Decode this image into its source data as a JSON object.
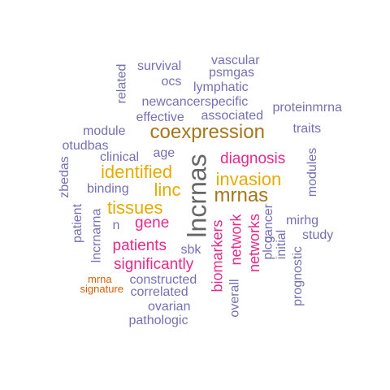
{
  "palette": {
    "slate": "#7570b3",
    "pink": "#e7298a",
    "gold": "#e6ab02",
    "brown": "#a6761d",
    "gray": "#666666",
    "orange": "#d95f02"
  },
  "words": [
    {
      "text": "lncrnas",
      "color": "#666666"
    },
    {
      "text": "coexpression",
      "color": "#a6761d"
    },
    {
      "text": "mrnas",
      "color": "#a6761d"
    },
    {
      "text": "identified",
      "color": "#e6ab02"
    },
    {
      "text": "invasion",
      "color": "#e6ab02"
    },
    {
      "text": "linc",
      "color": "#e6ab02"
    },
    {
      "text": "tissues",
      "color": "#e6ab02"
    },
    {
      "text": "diagnosis",
      "color": "#e7298a"
    },
    {
      "text": "gene",
      "color": "#e7298a"
    },
    {
      "text": "patients",
      "color": "#e7298a"
    },
    {
      "text": "significantly",
      "color": "#e7298a"
    },
    {
      "text": "biomarkers",
      "color": "#e7298a"
    },
    {
      "text": "network",
      "color": "#e7298a"
    },
    {
      "text": "networks",
      "color": "#e7298a"
    },
    {
      "text": "vascular",
      "color": "#7570b3"
    },
    {
      "text": "survival",
      "color": "#7570b3"
    },
    {
      "text": "psmgas",
      "color": "#7570b3"
    },
    {
      "text": "related",
      "color": "#7570b3"
    },
    {
      "text": "ocs",
      "color": "#7570b3"
    },
    {
      "text": "lymphatic",
      "color": "#7570b3"
    },
    {
      "text": "newcancerspecific",
      "color": "#7570b3"
    },
    {
      "text": "proteinmrna",
      "color": "#7570b3"
    },
    {
      "text": "effective",
      "color": "#7570b3"
    },
    {
      "text": "associated",
      "color": "#7570b3"
    },
    {
      "text": "module",
      "color": "#7570b3"
    },
    {
      "text": "traits",
      "color": "#7570b3"
    },
    {
      "text": "otudbas",
      "color": "#7570b3"
    },
    {
      "text": "clinical",
      "color": "#7570b3"
    },
    {
      "text": "age",
      "color": "#7570b3"
    },
    {
      "text": "modules",
      "color": "#7570b3"
    },
    {
      "text": "zbedas",
      "color": "#7570b3"
    },
    {
      "text": "binding",
      "color": "#7570b3"
    },
    {
      "text": "patient",
      "color": "#7570b3"
    },
    {
      "text": "n",
      "color": "#7570b3"
    },
    {
      "text": "lncrnarna",
      "color": "#7570b3"
    },
    {
      "text": "mirhg",
      "color": "#7570b3"
    },
    {
      "text": "study",
      "color": "#7570b3"
    },
    {
      "text": "sbk",
      "color": "#7570b3"
    },
    {
      "text": "constructed",
      "color": "#7570b3"
    },
    {
      "text": "correlated",
      "color": "#7570b3"
    },
    {
      "text": "ovarian",
      "color": "#7570b3"
    },
    {
      "text": "pathologic",
      "color": "#7570b3"
    },
    {
      "text": "overall",
      "color": "#7570b3"
    },
    {
      "text": "plcg",
      "color": "#7570b3"
    },
    {
      "text": "cancer",
      "color": "#7570b3"
    },
    {
      "text": "initial",
      "color": "#7570b3"
    },
    {
      "text": "prognostic",
      "color": "#7570b3"
    },
    {
      "text": "mrna",
      "color": "#d95f02"
    },
    {
      "text": "signature",
      "color": "#d95f02"
    }
  ]
}
